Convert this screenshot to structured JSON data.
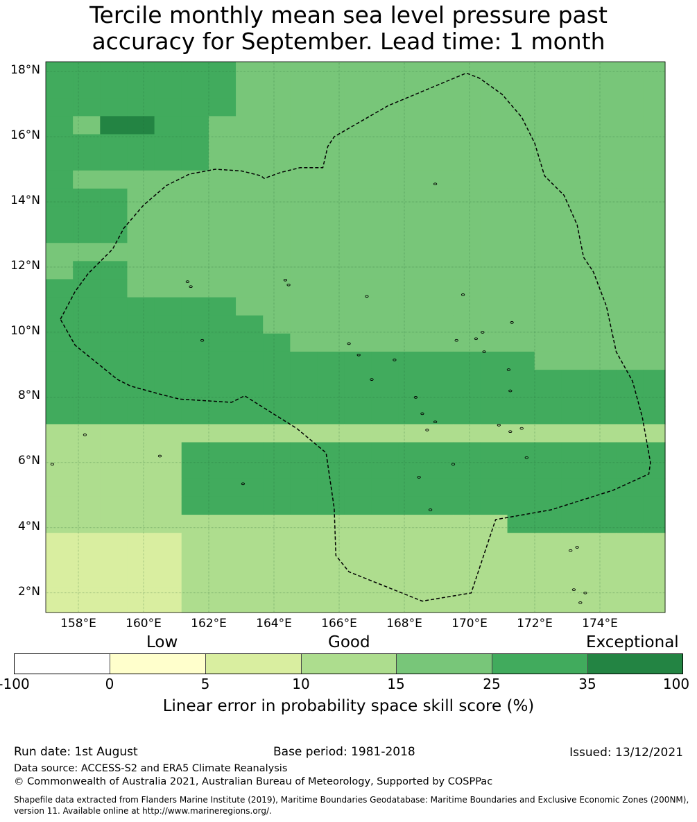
{
  "title": {
    "line1": "Tercile monthly mean sea level pressure past",
    "line2": "accuracy for September. Lead time: 1 month"
  },
  "map": {
    "lat_labels": [
      "18°N",
      "16°N",
      "14°N",
      "12°N",
      "10°N",
      "8°N",
      "6°N",
      "4°N",
      "2°N"
    ],
    "lon_labels": [
      "158°E",
      "160°E",
      "162°E",
      "164°E",
      "166°E",
      "168°E",
      "170°E",
      "172°E",
      "174°E"
    ],
    "lon_range": [
      157.0,
      176.0
    ],
    "lat_range": [
      1.4,
      18.3
    ],
    "grid_origin": {
      "lon": 157.0,
      "lat": 18.3
    },
    "cell_size_deg": [
      0.833,
      0.556
    ],
    "grid_rows": [
      "444444433333333333333333333333",
      "444444433333333333333333333333",
      "444444433333333333333333333333",
      "435544333333333333333333333333",
      "444444333333333333333333333333",
      "444444333333333333333333333333",
      "433333333333333333333333333333",
      "444333333333333333333333333333",
      "444333333333333333333333333333",
      "444333333333333333333333333333",
      "333333333333333333333333333333",
      "344333333333333333333333333333",
      "444333333333333333333333333333",
      "444444433333333333333333333333",
      "444444443333333333333333333333",
      "444444444333333333333333333333",
      "444444444444444444333333333333",
      "444444444444444444444443333333",
      "444444444444444444444443333333",
      "444444444444444444444444333333",
      "222222222222222222222222333333",
      "222224444444444444444444433333",
      "222224444444444444444444434333",
      "222224444444444444444444443333",
      "222224444444444444444444444433",
      "222222222222222224444444444444",
      "111112222222222222222222222222",
      "111112222222222222222222222244",
      "111112222222222222222222222244",
      "111112222222222222222222222244",
      "111112222222222222222222224444",
      "111112222222222222222222224444",
      "111112222222222222222222224444",
      "111112222222222222222222222244",
      "011112222222222222222222222244",
      "011111122222222222222222222244",
      "011111112222222222222222222244",
      "011111112222222222222222222244",
      "001111222222222222222222222244",
      "001112222222222222222222222222"
    ],
    "dashed_boundary": [
      [
        157.45,
        10.4
      ],
      [
        157.9,
        11.25
      ],
      [
        158.3,
        11.8
      ],
      [
        158.8,
        12.3
      ],
      [
        159.05,
        12.55
      ],
      [
        159.4,
        13.2
      ],
      [
        160.0,
        13.9
      ],
      [
        160.7,
        14.5
      ],
      [
        161.4,
        14.85
      ],
      [
        162.2,
        15.0
      ],
      [
        163.0,
        14.95
      ],
      [
        163.6,
        14.8
      ],
      [
        163.7,
        14.72
      ],
      [
        164.2,
        14.9
      ],
      [
        164.8,
        15.05
      ],
      [
        165.5,
        15.05
      ],
      [
        165.65,
        15.7
      ],
      [
        165.85,
        16.0
      ],
      [
        167.5,
        16.95
      ],
      [
        169.9,
        17.95
      ],
      [
        170.3,
        17.8
      ],
      [
        171.0,
        17.3
      ],
      [
        171.6,
        16.6
      ],
      [
        172.0,
        15.8
      ],
      [
        172.3,
        14.8
      ],
      [
        172.9,
        14.2
      ],
      [
        173.3,
        13.3
      ],
      [
        173.5,
        12.3
      ],
      [
        173.8,
        11.85
      ],
      [
        174.2,
        10.8
      ],
      [
        174.5,
        9.4
      ],
      [
        175.0,
        8.5
      ],
      [
        175.3,
        7.4
      ],
      [
        175.55,
        6.0
      ],
      [
        175.5,
        5.65
      ],
      [
        174.4,
        5.15
      ],
      [
        172.5,
        4.55
      ],
      [
        170.8,
        4.25
      ],
      [
        170.05,
        2.0
      ],
      [
        168.55,
        1.75
      ],
      [
        166.3,
        2.65
      ],
      [
        165.9,
        3.15
      ],
      [
        165.85,
        4.6
      ],
      [
        165.6,
        6.3
      ],
      [
        164.7,
        7.05
      ],
      [
        163.1,
        8.05
      ],
      [
        162.7,
        7.85
      ],
      [
        161.1,
        7.95
      ],
      [
        160.5,
        8.1
      ],
      [
        159.6,
        8.35
      ],
      [
        159.2,
        8.55
      ],
      [
        157.9,
        9.6
      ],
      [
        157.45,
        10.4
      ]
    ],
    "islands": [
      [
        161.35,
        11.55
      ],
      [
        161.45,
        11.4
      ],
      [
        164.35,
        11.6
      ],
      [
        164.45,
        11.45
      ],
      [
        166.85,
        11.1
      ],
      [
        168.95,
        14.55
      ],
      [
        169.8,
        11.15
      ],
      [
        171.3,
        10.3
      ],
      [
        170.4,
        10.0
      ],
      [
        169.6,
        9.75
      ],
      [
        170.2,
        9.8
      ],
      [
        170.45,
        9.4
      ],
      [
        171.2,
        8.85
      ],
      [
        171.25,
        8.2
      ],
      [
        170.9,
        7.15
      ],
      [
        171.25,
        6.95
      ],
      [
        171.6,
        7.05
      ],
      [
        168.35,
        8.0
      ],
      [
        168.55,
        7.5
      ],
      [
        168.7,
        7.0
      ],
      [
        168.95,
        7.25
      ],
      [
        169.5,
        5.95
      ],
      [
        171.75,
        6.15
      ],
      [
        168.45,
        5.55
      ],
      [
        168.8,
        4.55
      ],
      [
        173.1,
        3.3
      ],
      [
        173.3,
        3.4
      ],
      [
        173.2,
        2.1
      ],
      [
        173.4,
        1.7
      ],
      [
        173.55,
        2.0
      ],
      [
        160.5,
        6.2
      ],
      [
        158.2,
        6.85
      ],
      [
        163.05,
        5.35
      ],
      [
        157.2,
        5.95
      ],
      [
        167.7,
        9.15
      ],
      [
        166.6,
        9.3
      ],
      [
        161.8,
        9.75
      ],
      [
        166.3,
        9.65
      ],
      [
        167.0,
        8.55
      ]
    ],
    "colors": {
      "cell_palette": [
        "#fffdcb",
        "#d9eea0",
        "#aedd8e",
        "#78c679",
        "#41ab5d",
        "#238443"
      ],
      "grid_line": "#1a5c2e",
      "boundary": "#000000"
    }
  },
  "colorbar": {
    "categories": [
      "Low",
      "Good",
      "Exceptional"
    ],
    "ticks": [
      "-100",
      "0",
      "5",
      "10",
      "15",
      "25",
      "35",
      "100"
    ],
    "segment_colors": [
      "#ffffff",
      "#ffffcc",
      "#d9eea0",
      "#addd8e",
      "#78c679",
      "#41ab5d",
      "#238443"
    ],
    "label": "Linear error in probability space skill score (%)"
  },
  "footer": {
    "run_date": "Run date: 1st August",
    "base_period": "Base period: 1981-2018",
    "issued": "Issued: 13/12/2021",
    "data_source": "Data source: ACCESS-S2 and ERA5 Climate Reanalysis",
    "copyright": "© Commonwealth of Australia 2021, Australian Bureau of Meteorology, Supported by COSPPac",
    "shapefile_line1": "Shapefile data extracted from Flanders Marine Institute (2019), Maritime Boundaries Geodatabase: Maritime Boundaries and Exclusive Economic Zones (200NM),",
    "shapefile_line2": "version 11. Available online at http://www.marineregions.org/."
  }
}
